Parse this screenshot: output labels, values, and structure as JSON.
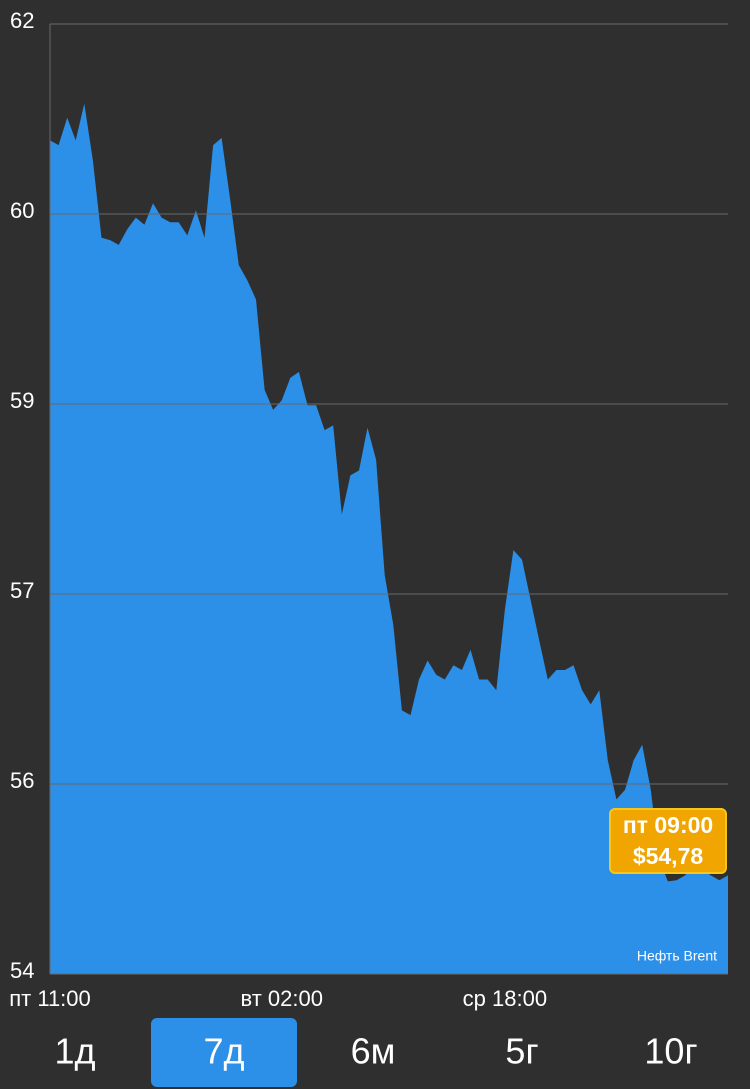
{
  "chart_data": {
    "type": "area",
    "color": "#2c8fe8",
    "categories": [
      "пт 11:00",
      null,
      null,
      null,
      null,
      null,
      null,
      null,
      null,
      null,
      null,
      null,
      null,
      null,
      null,
      null,
      null,
      null,
      null,
      null,
      null,
      null,
      null,
      null,
      null,
      null,
      null,
      "вт 02:00",
      null,
      null,
      null,
      null,
      null,
      null,
      null,
      null,
      null,
      null,
      null,
      null,
      null,
      null,
      null,
      null,
      null,
      null,
      null,
      null,
      null,
      null,
      null,
      null,
      null,
      "ср 18:00",
      null,
      null,
      null,
      null,
      null,
      null,
      null,
      null,
      null,
      null,
      null,
      null,
      null,
      null,
      null,
      null,
      null,
      null,
      null,
      null,
      null,
      null,
      null,
      null,
      null,
      null
    ],
    "values": [
      61.02,
      60.98,
      61.21,
      61.02,
      61.33,
      60.85,
      60.2,
      60.18,
      60.14,
      60.27,
      60.37,
      60.31,
      60.49,
      60.37,
      60.33,
      60.33,
      60.22,
      60.43,
      60.2,
      60.98,
      61.04,
      60.52,
      59.97,
      59.84,
      59.68,
      58.92,
      58.75,
      58.83,
      59.02,
      59.07,
      58.79,
      58.79,
      58.58,
      58.62,
      57.87,
      58.2,
      58.24,
      58.6,
      58.33,
      57.36,
      56.94,
      56.22,
      56.18,
      56.48,
      56.64,
      56.52,
      56.48,
      56.6,
      56.56,
      56.73,
      56.48,
      56.48,
      56.39,
      57.07,
      57.57,
      57.49,
      57.15,
      56.81,
      56.48,
      56.56,
      56.56,
      56.6,
      56.39,
      56.27,
      56.39,
      55.8,
      55.47,
      55.55,
      55.8,
      55.93,
      55.55,
      54.96,
      54.78,
      54.79,
      54.83,
      54.92,
      54.88,
      54.83,
      54.79,
      54.83
    ],
    "ylim": [
      54,
      62
    ],
    "yticks": [
      62,
      {
        "value": 60.4,
        "label": "60"
      },
      {
        "value": 58.8,
        "label": "59"
      },
      {
        "value": 57.2,
        "label": "57"
      },
      {
        "value": 55.6,
        "label": "56"
      },
      54
    ],
    "grid": true,
    "watermark": "Нефть Brent",
    "tooltip": {
      "time": "пт 09:00",
      "value": 54.78,
      "value_label": "$54,78"
    }
  },
  "range_buttons": {
    "labels": [
      "1д",
      "7д",
      "6м",
      "5г",
      "10г"
    ],
    "selected_index": 1
  }
}
